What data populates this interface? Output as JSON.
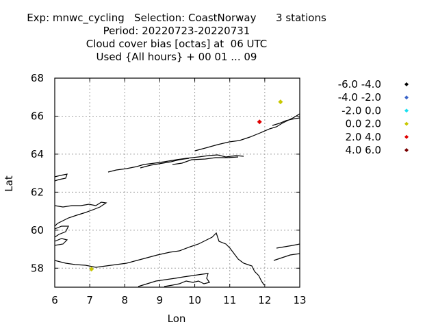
{
  "title_lines": [
    "Exp: mnwc_cycling   Selection: CoastNorway      3 stations",
    "Period: 20220723-20220731",
    "Cloud cover bias [octas] at  06 UTC",
    "Used {All hours} + 00 01 ... 09"
  ],
  "colors": {
    "grid": "#a0a0a0",
    "coast": "#000000",
    "frame": "#000000"
  },
  "chart_data": {
    "type": "scatter",
    "xlabel": "Lon",
    "ylabel": "Lat",
    "xlim": [
      6,
      13
    ],
    "ylim": [
      57,
      68
    ],
    "xticks": [
      6,
      7,
      8,
      9,
      10,
      11,
      12,
      13
    ],
    "yticks": [
      58,
      60,
      62,
      64,
      66,
      68
    ],
    "grid": true,
    "legend_position": "right",
    "legend": [
      {
        "label": "-6.0 -4.0",
        "color": "#000000"
      },
      {
        "label": "-4.0 -2.0",
        "color": "#3a64c8"
      },
      {
        "label": "-2.0 0.0",
        "color": "#18e0f0"
      },
      {
        "label": "0.0 2.0",
        "color": "#c8c800"
      },
      {
        "label": "2.0 4.0",
        "color": "#e00000"
      },
      {
        "label": "4.0 6.0",
        "color": "#780000"
      }
    ],
    "points": [
      {
        "lon": 12.45,
        "lat": 66.75,
        "color": "#c8c800"
      },
      {
        "lon": 11.85,
        "lat": 65.7,
        "color": "#e00000"
      },
      {
        "lon": 7.05,
        "lat": 57.95,
        "color": "#c8c800"
      }
    ]
  }
}
